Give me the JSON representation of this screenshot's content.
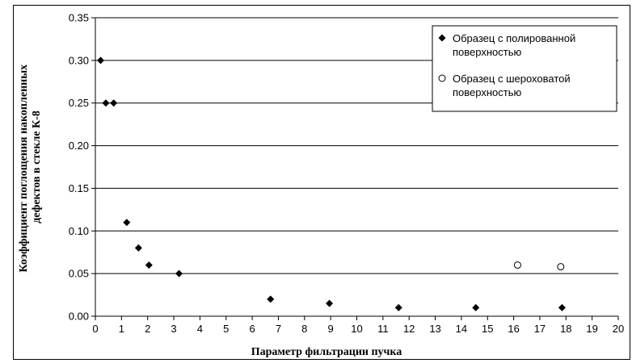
{
  "chart_data": {
    "type": "scatter",
    "xlabel": "Параметр фильтрации пучка",
    "ylabel_lines": [
      "Коэффициент поглощения накопленных",
      "дефектов в стекле К-8"
    ],
    "xlim": [
      0,
      20
    ],
    "ylim": [
      0,
      0.35
    ],
    "x_ticks": [
      "0",
      "1",
      "2",
      "3",
      "4",
      "5",
      "6",
      "7",
      "8",
      "9",
      "10",
      "11",
      "12",
      "13",
      "14",
      "15",
      "16",
      "17",
      "18",
      "19",
      "20"
    ],
    "y_ticks": [
      "0.00",
      "0.05",
      "0.10",
      "0.15",
      "0.20",
      "0.25",
      "0.30",
      "0.35"
    ],
    "grid": "horizontal",
    "legend_position": "top-right",
    "series": [
      {
        "name_lines": [
          "Образец с полированной",
          "поверхностью"
        ],
        "marker": "filled-diamond",
        "color": "#000000",
        "points": [
          [
            0.2,
            0.3
          ],
          [
            0.4,
            0.25
          ],
          [
            0.7,
            0.25
          ],
          [
            1.2,
            0.11
          ],
          [
            1.65,
            0.08
          ],
          [
            2.05,
            0.06
          ],
          [
            3.2,
            0.05
          ],
          [
            6.7,
            0.02
          ],
          [
            8.95,
            0.015
          ],
          [
            11.6,
            0.01
          ],
          [
            14.55,
            0.01
          ],
          [
            17.85,
            0.01
          ]
        ]
      },
      {
        "name_lines": [
          "Образец с шероховатой",
          "поверхностью"
        ],
        "marker": "open-circle",
        "color": "#000000",
        "points": [
          [
            16.15,
            0.06
          ],
          [
            17.8,
            0.058
          ]
        ]
      }
    ]
  }
}
